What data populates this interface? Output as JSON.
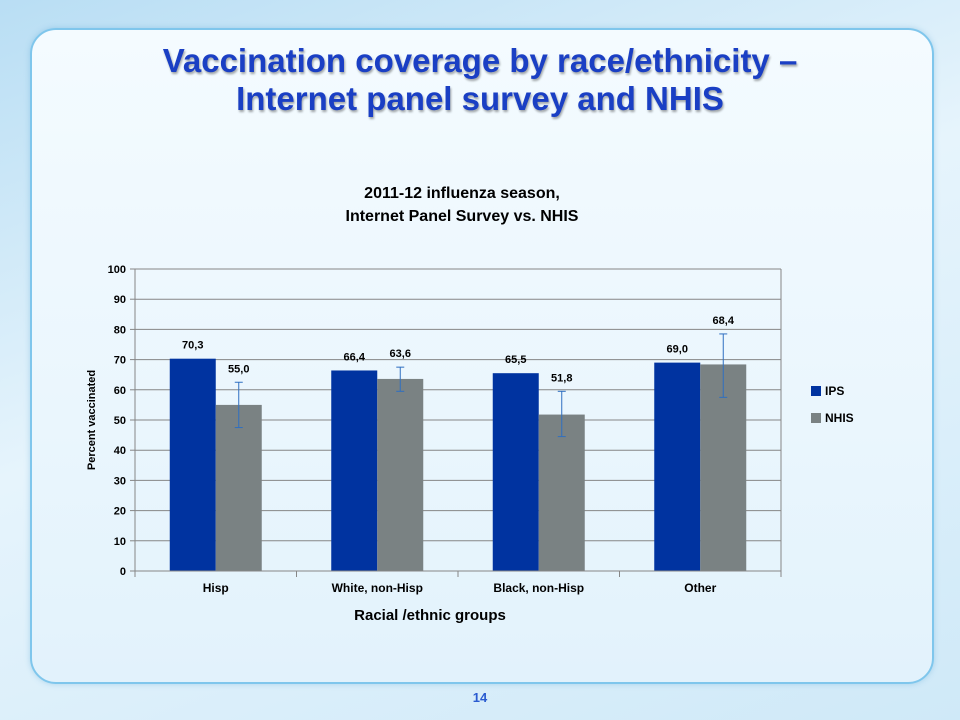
{
  "slide": {
    "title_line1": "Vaccination coverage by race/ethnicity –",
    "title_line2": "Internet panel survey and NHIS",
    "page_number": "14"
  },
  "colors": {
    "ips": "#0033a0",
    "nhis": "#7a8283",
    "title": "#1a3fc4"
  },
  "chart_data": {
    "type": "bar",
    "title": "2011-12 influenza season,",
    "subtitle": "Internet Panel Survey vs. NHIS",
    "xlabel": "Racial /ethnic groups",
    "ylabel": "Percent vaccinated",
    "ylim": [
      0,
      100
    ],
    "yticks": [
      0,
      10,
      20,
      30,
      40,
      50,
      60,
      70,
      80,
      90,
      100
    ],
    "grid": true,
    "legend_position": "right",
    "categories": [
      "Hisp",
      "White, non-Hisp",
      "Black, non-Hisp",
      "Other"
    ],
    "series": [
      {
        "name": "IPS",
        "values": [
          70.3,
          66.4,
          65.5,
          69.0
        ],
        "labels": [
          "70,3",
          "66,4",
          "65,5",
          "69,0"
        ]
      },
      {
        "name": "NHIS",
        "values": [
          55.0,
          63.6,
          51.8,
          68.4
        ],
        "labels": [
          "55,0",
          "63,6",
          "51,8",
          "68,4"
        ],
        "error_low": [
          47.5,
          59.5,
          44.5,
          57.5
        ],
        "error_high": [
          62.5,
          67.5,
          59.5,
          78.5
        ]
      }
    ]
  }
}
